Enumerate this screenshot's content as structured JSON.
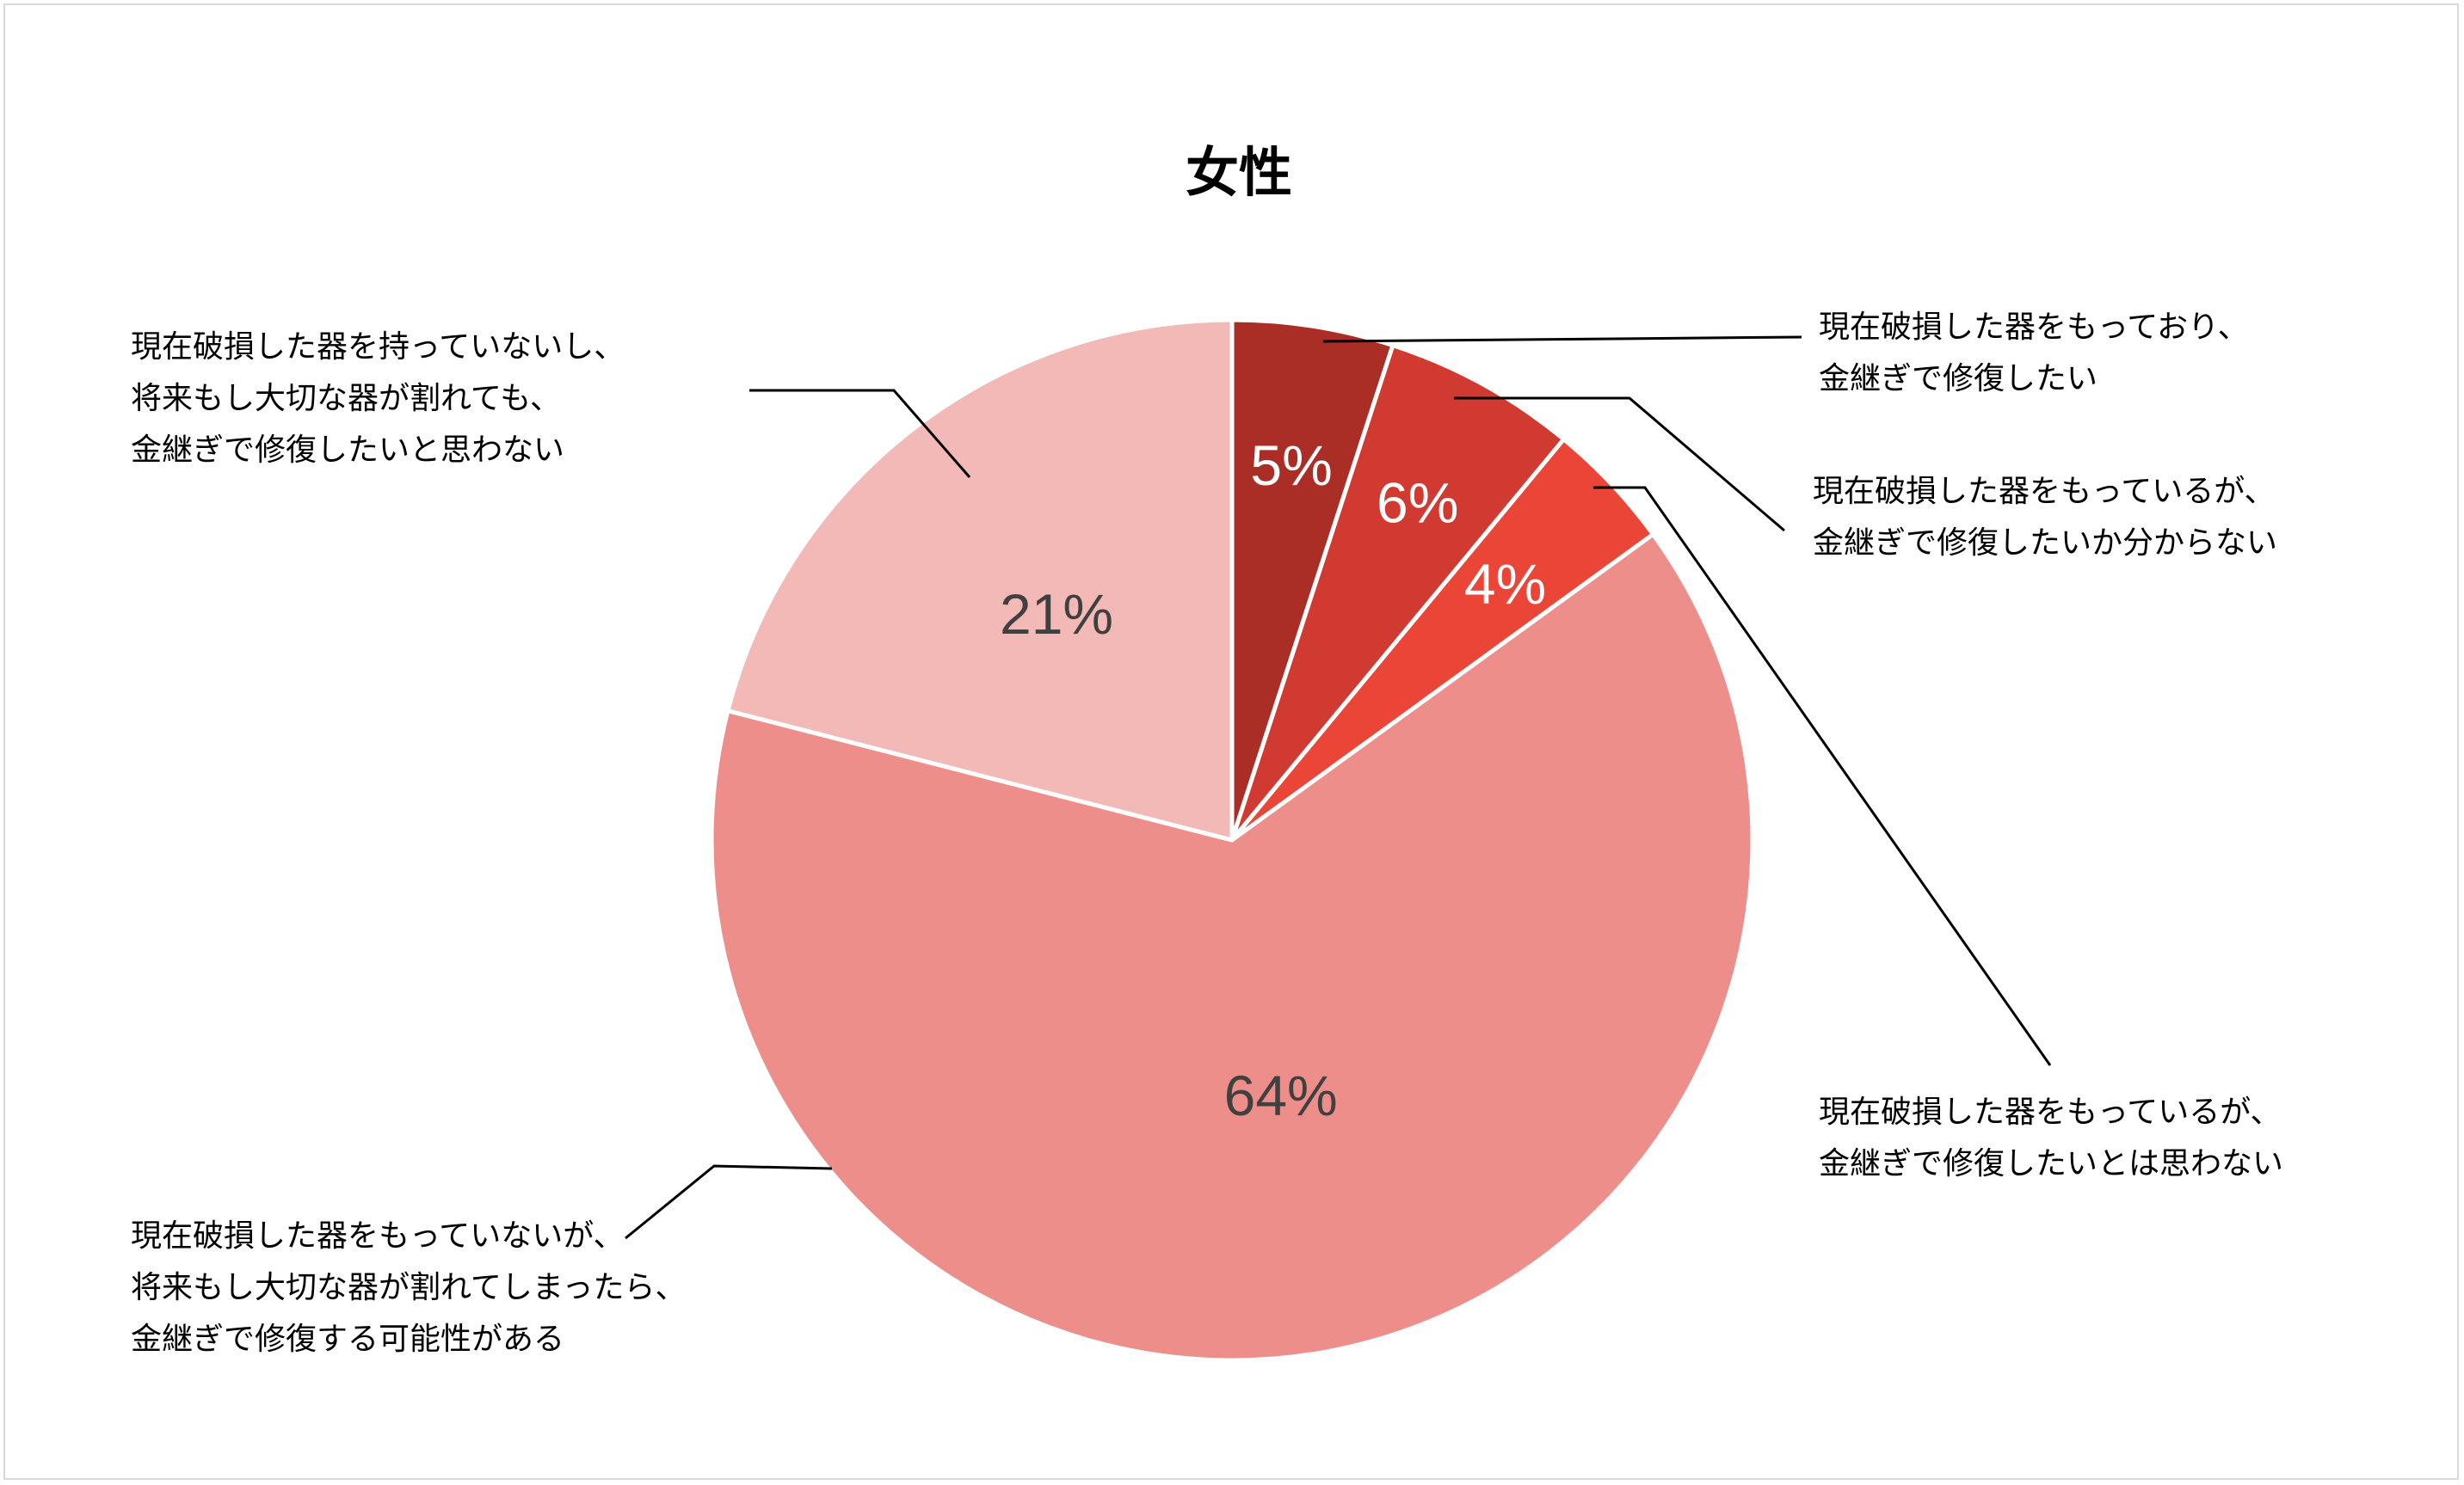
{
  "chart_data": {
    "type": "pie",
    "title": "女性",
    "start_angle_deg": 0,
    "direction": "clockwise",
    "slices": [
      {
        "label_lines": [
          "現在破損した器をもっており、",
          "金継ぎで修復したい"
        ],
        "value": 5,
        "value_label": "5%",
        "color": "#ab2e26",
        "value_color": "#ffffff"
      },
      {
        "label_lines": [
          "現在破損した器をもっているが、",
          "金継ぎで修復したいか分からない"
        ],
        "value": 6,
        "value_label": "6%",
        "color": "#d03a30",
        "value_color": "#ffffff"
      },
      {
        "label_lines": [
          "現在破損した器をもっているが、",
          "金継ぎで修復したいとは思わない"
        ],
        "value": 4,
        "value_label": "4%",
        "color": "#ea4537",
        "value_color": "#ffffff"
      },
      {
        "label_lines": [
          "現在破損した器をもっていないが、",
          "将来もし大切な器が割れてしまったら、",
          "金継ぎで修復する可能性がある"
        ],
        "value": 64,
        "value_label": "64%",
        "color": "#ee8e8a",
        "value_color": "#404040"
      },
      {
        "label_lines": [
          "現在破損した器を持っていないし、",
          "将来もし大切な器が割れても、",
          "金継ぎで修復したいと思わない"
        ],
        "value": 21,
        "value_label": "21%",
        "color": "#f3b9b7",
        "value_color": "#404040"
      }
    ]
  }
}
